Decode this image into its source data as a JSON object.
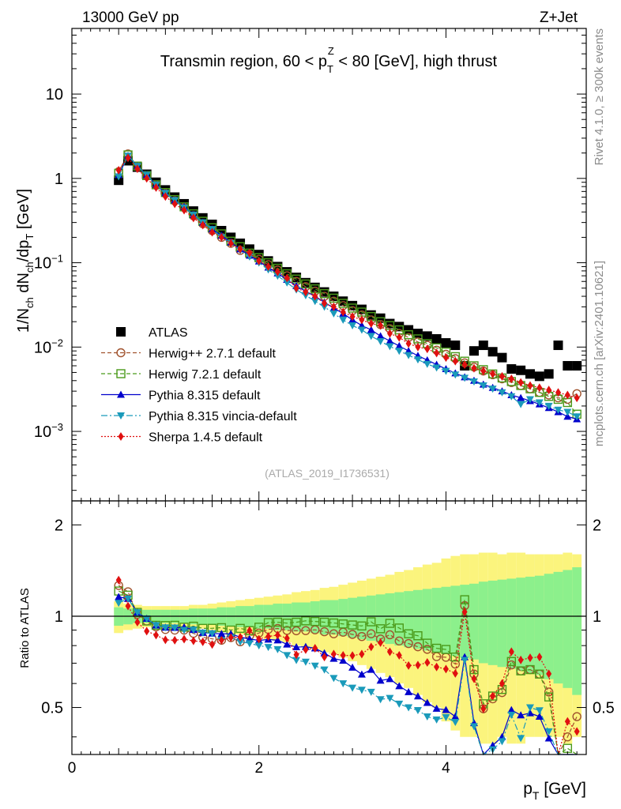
{
  "header": {
    "left": "13000 GeV pp",
    "right": "Z+Jet"
  },
  "side": {
    "top": "Rivet 4.1.0, ≥ 300k events",
    "bottom": "mcplots.cern.ch [arXiv:2401.10621]"
  },
  "chart_data": [
    {
      "type": "scatter",
      "title": "Transmin region, 60 < pTZ < 80 [GeV], high thrust",
      "title_parts": {
        "pre": "Transmin region, 60 < p",
        "sub": "T",
        "sup": "Z",
        "post": " < 80 [GeV], high thrust"
      },
      "ylabel": "1/Nch dNch/dpT [GeV]",
      "ylabel_parts": {
        "a": "1/N",
        "b": "ch",
        "c": " dN",
        "d": "ch",
        "e": "/dp",
        "f": "T",
        "g": " [GeV]"
      },
      "yscale": "log",
      "ylim": [
        0.00015,
        60
      ],
      "xlim": [
        0,
        5.5
      ],
      "yticks": [
        {
          "v": 10,
          "label": "10"
        },
        {
          "v": 1,
          "label": "1"
        },
        {
          "base": "10",
          "exp": "−1",
          "v": 0.1
        },
        {
          "base": "10",
          "exp": "−2",
          "v": 0.01
        },
        {
          "base": "10",
          "exp": "−3",
          "v": 0.001
        }
      ],
      "watermark": "(ATLAS_2019_I1736531)",
      "legend": [
        {
          "key": "atlas",
          "label": "ATLAS"
        },
        {
          "key": "herwigpp",
          "label": "Herwig++ 2.7.1 default"
        },
        {
          "key": "herwig7",
          "label": "Herwig 7.2.1 default"
        },
        {
          "key": "pythia",
          "label": "Pythia 8.315 default"
        },
        {
          "key": "vincia",
          "label": "Pythia 8.315 vincia-default"
        },
        {
          "key": "sherpa",
          "label": "Sherpa 1.4.5 default"
        }
      ],
      "x": [
        0.5,
        0.6,
        0.7,
        0.8,
        0.9,
        1.0,
        1.1,
        1.2,
        1.3,
        1.4,
        1.5,
        1.6,
        1.7,
        1.8,
        1.9,
        2.0,
        2.1,
        2.2,
        2.3,
        2.4,
        2.5,
        2.6,
        2.7,
        2.8,
        2.9,
        3.0,
        3.1,
        3.2,
        3.3,
        3.4,
        3.5,
        3.6,
        3.7,
        3.8,
        3.9,
        4.0,
        4.1,
        4.2,
        4.3,
        4.4,
        4.5,
        4.6,
        4.7,
        4.8,
        4.9,
        5.0,
        5.1,
        5.2,
        5.3,
        5.4
      ],
      "series": [
        {
          "name": "ATLAS",
          "color": "#000000",
          "values": [
            0.95,
            1.62,
            1.36,
            1.12,
            0.9,
            0.73,
            0.6,
            0.5,
            0.41,
            0.34,
            0.285,
            0.24,
            0.2,
            0.17,
            0.145,
            0.125,
            0.105,
            0.09,
            0.078,
            0.067,
            0.058,
            0.051,
            0.045,
            0.04,
            0.035,
            0.031,
            0.028,
            0.024,
            0.022,
            0.019,
            0.0175,
            0.016,
            0.0145,
            0.0135,
            0.0125,
            0.0112,
            0.0105,
            0.006,
            0.009,
            0.0105,
            0.0088,
            0.0075,
            0.0055,
            0.0053,
            0.0048,
            0.0045,
            0.0048,
            0.0105,
            0.006,
            0.006
          ]
        },
        {
          "name": "Herwig++ 2.7.1 default",
          "color": "#a0522d",
          "values": [
            1.2,
            1.95,
            1.38,
            1.08,
            0.83,
            0.66,
            0.54,
            0.45,
            0.36,
            0.29,
            0.24,
            0.2,
            0.17,
            0.14,
            0.125,
            0.11,
            0.095,
            0.082,
            0.07,
            0.06,
            0.052,
            0.046,
            0.04,
            0.035,
            0.031,
            0.027,
            0.024,
            0.021,
            0.0185,
            0.0165,
            0.0145,
            0.013,
            0.0115,
            0.0105,
            0.0092,
            0.0082,
            0.0073,
            0.0065,
            0.0058,
            0.0052,
            0.0047,
            0.0042,
            0.0038,
            0.0035,
            0.0032,
            0.0029,
            0.0027,
            0.0025,
            0.0024,
            0.0028
          ]
        },
        {
          "name": "Herwig 7.2.1 default",
          "color": "#4a9a1a",
          "values": [
            1.15,
            1.9,
            1.4,
            1.08,
            0.84,
            0.68,
            0.56,
            0.46,
            0.38,
            0.31,
            0.26,
            0.22,
            0.18,
            0.155,
            0.13,
            0.115,
            0.1,
            0.086,
            0.074,
            0.064,
            0.056,
            0.049,
            0.043,
            0.038,
            0.033,
            0.029,
            0.026,
            0.023,
            0.02,
            0.018,
            0.016,
            0.014,
            0.0125,
            0.011,
            0.0098,
            0.0087,
            0.0077,
            0.0068,
            0.006,
            0.0054,
            0.0048,
            0.0043,
            0.0039,
            0.0035,
            0.0032,
            0.0029,
            0.0026,
            0.0024,
            0.0022,
            0.0016
          ]
        },
        {
          "name": "Pythia 8.315 default",
          "color": "#0000cc",
          "values": [
            1.1,
            1.85,
            1.4,
            1.1,
            0.84,
            0.67,
            0.55,
            0.46,
            0.37,
            0.3,
            0.25,
            0.21,
            0.175,
            0.145,
            0.122,
            0.104,
            0.088,
            0.075,
            0.063,
            0.053,
            0.046,
            0.04,
            0.034,
            0.029,
            0.025,
            0.021,
            0.018,
            0.016,
            0.0135,
            0.0118,
            0.0103,
            0.009,
            0.0079,
            0.007,
            0.0062,
            0.0055,
            0.0049,
            0.0044,
            0.004,
            0.0036,
            0.0033,
            0.003,
            0.0027,
            0.0025,
            0.0023,
            0.0021,
            0.0019,
            0.0017,
            0.0015,
            0.0014
          ]
        },
        {
          "name": "Pythia 8.315 vincia-default",
          "color": "#1a9aba",
          "values": [
            1.05,
            1.85,
            1.4,
            1.1,
            0.84,
            0.67,
            0.55,
            0.45,
            0.37,
            0.3,
            0.25,
            0.2,
            0.17,
            0.14,
            0.118,
            0.1,
            0.083,
            0.07,
            0.058,
            0.048,
            0.041,
            0.035,
            0.03,
            0.025,
            0.021,
            0.018,
            0.016,
            0.0135,
            0.0117,
            0.0102,
            0.009,
            0.008,
            0.0071,
            0.0063,
            0.0057,
            0.0052,
            0.0047,
            0.0043,
            0.0039,
            0.0035,
            0.0032,
            0.0029,
            0.0026,
            0.0021,
            0.0024,
            0.0022,
            0.002,
            0.0018,
            0.0017,
            0.0015
          ]
        },
        {
          "name": "Sherpa 1.4.5 default",
          "color": "#e01010",
          "values": [
            1.25,
            1.75,
            1.3,
            1.0,
            0.78,
            0.61,
            0.5,
            0.42,
            0.34,
            0.28,
            0.23,
            0.2,
            0.17,
            0.145,
            0.13,
            0.105,
            0.09,
            0.078,
            0.066,
            0.05,
            0.045,
            0.04,
            0.033,
            0.03,
            0.026,
            0.023,
            0.021,
            0.019,
            0.018,
            0.0145,
            0.013,
            0.011,
            0.01,
            0.0095,
            0.0085,
            0.0075,
            0.0068,
            0.0062,
            0.0056,
            0.0052,
            0.0048,
            0.0045,
            0.0042,
            0.0038,
            0.0035,
            0.0033,
            0.0031,
            0.0029,
            0.0027,
            0.0025
          ]
        }
      ]
    },
    {
      "type": "scatter",
      "ylabel": "Ratio to ATLAS",
      "xlabel": "pT [GeV]",
      "xlabel_parts": {
        "a": "p",
        "b": "T",
        "c": " [GeV]"
      },
      "xlim": [
        0,
        5.5
      ],
      "ylim": [
        0.35,
        2.4
      ],
      "yscale": "log",
      "xticks": [
        {
          "v": 0,
          "label": "0"
        },
        {
          "v": 2,
          "label": "2"
        },
        {
          "v": 4,
          "label": "4"
        }
      ],
      "yticks": [
        {
          "v": 2,
          "label": "2"
        },
        {
          "v": 1,
          "label": "1"
        },
        {
          "v": 0.5,
          "label": "0.5"
        }
      ],
      "band_inner": [
        0.07,
        0.06,
        0.05,
        0.05,
        0.05,
        0.05,
        0.05,
        0.05,
        0.06,
        0.06,
        0.06,
        0.07,
        0.07,
        0.08,
        0.08,
        0.09,
        0.09,
        0.1,
        0.1,
        0.11,
        0.11,
        0.12,
        0.13,
        0.13,
        0.14,
        0.15,
        0.16,
        0.17,
        0.18,
        0.19,
        0.2,
        0.21,
        0.22,
        0.23,
        0.24,
        0.25,
        0.26,
        0.27,
        0.28,
        0.3,
        0.31,
        0.32,
        0.33,
        0.34,
        0.35,
        0.36,
        0.38,
        0.4,
        0.42,
        0.45
      ],
      "band_outer": [
        0.12,
        0.1,
        0.09,
        0.08,
        0.08,
        0.08,
        0.08,
        0.08,
        0.09,
        0.09,
        0.1,
        0.11,
        0.12,
        0.13,
        0.14,
        0.15,
        0.16,
        0.17,
        0.18,
        0.2,
        0.21,
        0.22,
        0.24,
        0.25,
        0.27,
        0.29,
        0.31,
        0.33,
        0.35,
        0.37,
        0.4,
        0.42,
        0.45,
        0.48,
        0.5,
        0.55,
        0.58,
        0.6,
        0.6,
        0.62,
        0.62,
        0.6,
        0.62,
        0.62,
        0.6,
        0.6,
        0.6,
        0.6,
        0.62,
        0.6
      ]
    }
  ]
}
